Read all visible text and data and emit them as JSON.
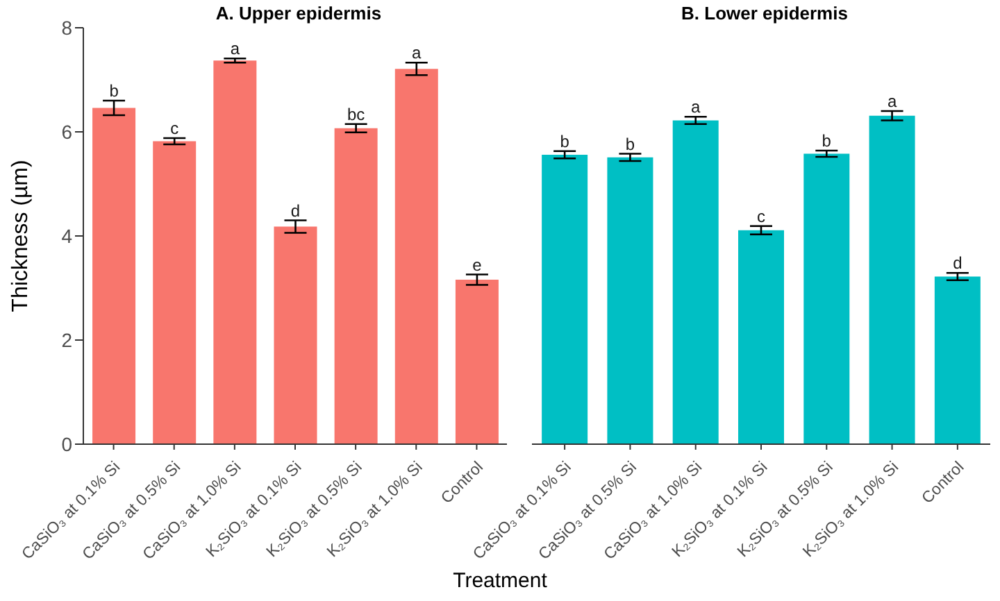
{
  "chart_data": [
    {
      "type": "bar",
      "title": "A. Upper epidermis",
      "ylabel": "Thickness (µm)",
      "xlabel": "Treatment",
      "categories": [
        "CaSiO₃ at 0.1% Si",
        "CaSiO₃ at 0.5% Si",
        "CaSiO₃ at 1.0% Si",
        "K₂SiO₃ at 0.1% Si",
        "K₂SiO₃ at 0.5% Si",
        "K₂SiO₃ at 1.0% Si",
        "Control"
      ],
      "values": [
        6.46,
        5.82,
        7.37,
        4.18,
        6.07,
        7.21,
        3.16
      ],
      "errors": [
        0.14,
        0.06,
        0.04,
        0.12,
        0.08,
        0.12,
        0.1
      ],
      "value_labels": [
        "b",
        "c",
        "a",
        "d",
        "bc",
        "a",
        "e"
      ],
      "color": "#f8766d",
      "ylim": [
        0,
        8
      ],
      "yticks": [
        0,
        2,
        4,
        6,
        8
      ],
      "grid": false,
      "legend": false
    },
    {
      "type": "bar",
      "title": "B. Lower epidermis",
      "categories": [
        "CaSiO₃ at 0.1% Si",
        "CaSiO₃ at 0.5% Si",
        "CaSiO₃ at 1.0% Si",
        "K₂SiO₃ at 0.1% Si",
        "K₂SiO₃ at 0.5% Si",
        "K₂SiO₃ at 1.0% Si",
        "Control"
      ],
      "values": [
        5.56,
        5.51,
        6.22,
        4.11,
        5.58,
        6.31,
        3.22
      ],
      "errors": [
        0.07,
        0.07,
        0.07,
        0.08,
        0.06,
        0.09,
        0.07
      ],
      "value_labels": [
        "b",
        "b",
        "a",
        "c",
        "b",
        "a",
        "d"
      ],
      "color": "#00bfc4",
      "ylim": [
        0,
        8
      ],
      "yticks": [
        0,
        2,
        4,
        6,
        8
      ],
      "tick_labels": "x",
      "grid": false,
      "legend": false
    }
  ]
}
